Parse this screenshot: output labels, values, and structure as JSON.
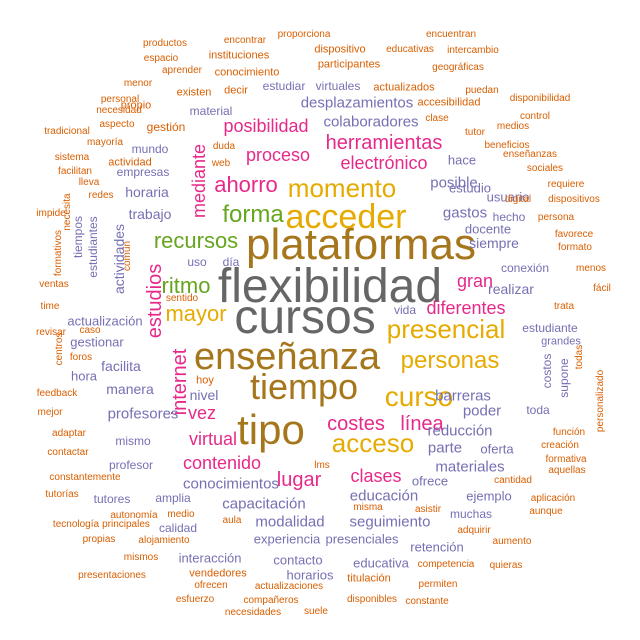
{
  "palette": {
    "orange": "#D95F02",
    "purple": "#7570B3",
    "magenta": "#E7298A",
    "green": "#66A61E",
    "gold": "#E6AB02",
    "brown": "#A6761D",
    "gray": "#666666"
  },
  "words": [
    {
      "text": "flexibilidad",
      "freq": 100,
      "color": "gray"
    },
    {
      "text": "cursos",
      "freq": 100,
      "color": "gray"
    },
    {
      "text": "plataformas",
      "freq": 92,
      "color": "brown"
    },
    {
      "text": "enseñanza",
      "freq": 90,
      "color": "brown"
    },
    {
      "text": "tiempo",
      "freq": 86,
      "color": "brown"
    },
    {
      "text": "tipo",
      "freq": 84,
      "color": "brown"
    },
    {
      "text": "acceder",
      "freq": 80,
      "color": "gold"
    },
    {
      "text": "momento",
      "freq": 66,
      "color": "gold"
    },
    {
      "text": "presencial",
      "freq": 64,
      "color": "gold"
    },
    {
      "text": "curso",
      "freq": 62,
      "color": "gold"
    },
    {
      "text": "acceso",
      "freq": 62,
      "color": "gold"
    },
    {
      "text": "personas",
      "freq": 60,
      "color": "gold"
    },
    {
      "text": "forma",
      "freq": 56,
      "color": "green"
    },
    {
      "text": "mayor",
      "freq": 52,
      "color": "gold"
    },
    {
      "text": "ritmo",
      "freq": 50,
      "color": "green"
    },
    {
      "text": "recursos",
      "freq": 50,
      "color": "green"
    },
    {
      "text": "ahorro",
      "freq": 48,
      "color": "magenta"
    },
    {
      "text": "herramientas",
      "freq": 46,
      "color": "magenta"
    },
    {
      "text": "estudios",
      "freq": 48,
      "color": "magenta"
    },
    {
      "text": "internet",
      "freq": 48,
      "color": "magenta"
    },
    {
      "text": "mediante",
      "freq": 46,
      "color": "magenta"
    },
    {
      "text": "costes",
      "freq": 46,
      "color": "magenta"
    },
    {
      "text": "línea",
      "freq": 46,
      "color": "magenta"
    },
    {
      "text": "lugar",
      "freq": 44,
      "color": "magenta"
    },
    {
      "text": "contenido",
      "freq": 44,
      "color": "magenta"
    },
    {
      "text": "electrónico",
      "freq": 42,
      "color": "magenta"
    },
    {
      "text": "proceso",
      "freq": 42,
      "color": "magenta"
    },
    {
      "text": "posibilidad",
      "freq": 42,
      "color": "magenta"
    },
    {
      "text": "vez",
      "freq": 42,
      "color": "magenta"
    },
    {
      "text": "virtual",
      "freq": 40,
      "color": "magenta"
    },
    {
      "text": "diferentes",
      "freq": 40,
      "color": "magenta"
    },
    {
      "text": "clases",
      "freq": 40,
      "color": "magenta"
    },
    {
      "text": "gran",
      "freq": 40,
      "color": "magenta"
    },
    {
      "text": "colaboradores",
      "freq": 36,
      "color": "purple"
    },
    {
      "text": "desplazamientos",
      "freq": 36,
      "color": "purple"
    },
    {
      "text": "capacitación",
      "freq": 36,
      "color": "purple"
    },
    {
      "text": "conocimientos",
      "freq": 36,
      "color": "purple"
    },
    {
      "text": "modalidad",
      "freq": 36,
      "color": "purple"
    },
    {
      "text": "seguimiento",
      "freq": 36,
      "color": "purple"
    },
    {
      "text": "educación",
      "freq": 36,
      "color": "purple"
    },
    {
      "text": "posible",
      "freq": 34,
      "color": "purple"
    },
    {
      "text": "gastos",
      "freq": 34,
      "color": "purple"
    },
    {
      "text": "barreras",
      "freq": 34,
      "color": "purple"
    },
    {
      "text": "poder",
      "freq": 34,
      "color": "purple"
    },
    {
      "text": "parte",
      "freq": 34,
      "color": "purple"
    },
    {
      "text": "reducción",
      "freq": 34,
      "color": "purple"
    },
    {
      "text": "materiales",
      "freq": 34,
      "color": "purple"
    },
    {
      "text": "profesores",
      "freq": 34,
      "color": "purple"
    },
    {
      "text": "realizar",
      "freq": 32,
      "color": "purple"
    },
    {
      "text": "trabajo",
      "freq": 32,
      "color": "purple"
    },
    {
      "text": "manera",
      "freq": 32,
      "color": "purple"
    },
    {
      "text": "facilita",
      "freq": 30,
      "color": "purple"
    },
    {
      "text": "horaria",
      "freq": 30,
      "color": "purple"
    },
    {
      "text": "actividades",
      "freq": 30,
      "color": "purple"
    },
    {
      "text": "siempre",
      "freq": 32,
      "color": "purple"
    },
    {
      "text": "nivel",
      "freq": 30,
      "color": "purple"
    },
    {
      "text": "hace",
      "freq": 28,
      "color": "purple"
    },
    {
      "text": "estudio",
      "freq": 28,
      "color": "purple"
    },
    {
      "text": "docente",
      "freq": 28,
      "color": "purple"
    },
    {
      "text": "hecho",
      "freq": 26,
      "color": "purple"
    },
    {
      "text": "usuario",
      "freq": 28,
      "color": "purple"
    },
    {
      "text": "conexión",
      "freq": 26,
      "color": "purple"
    },
    {
      "text": "vida",
      "freq": 26,
      "color": "purple"
    },
    {
      "text": "toda",
      "freq": 26,
      "color": "purple"
    },
    {
      "text": "costos",
      "freq": 26,
      "color": "purple"
    },
    {
      "text": "estudiante",
      "freq": 24,
      "color": "purple"
    },
    {
      "text": "grandes",
      "freq": 22,
      "color": "purple"
    },
    {
      "text": "ofrece",
      "freq": 26,
      "color": "purple"
    },
    {
      "text": "ejemplo",
      "freq": 26,
      "color": "purple"
    },
    {
      "text": "oferta",
      "freq": 24,
      "color": "purple"
    },
    {
      "text": "supone",
      "freq": 22,
      "color": "purple"
    },
    {
      "text": "muchas",
      "freq": 24,
      "color": "purple"
    },
    {
      "text": "experiencia",
      "freq": 26,
      "color": "purple"
    },
    {
      "text": "presenciales",
      "freq": 24,
      "color": "purple"
    },
    {
      "text": "interacción",
      "freq": 24,
      "color": "purple"
    },
    {
      "text": "contacto",
      "freq": 24,
      "color": "purple"
    },
    {
      "text": "horarios",
      "freq": 24,
      "color": "purple"
    },
    {
      "text": "retención",
      "freq": 24,
      "color": "purple"
    },
    {
      "text": "educativa",
      "freq": 24,
      "color": "purple"
    },
    {
      "text": "actualización",
      "freq": 26,
      "color": "purple"
    },
    {
      "text": "gestionar",
      "freq": 26,
      "color": "purple"
    },
    {
      "text": "hora",
      "freq": 24,
      "color": "purple"
    },
    {
      "text": "tutores",
      "freq": 24,
      "color": "purple"
    },
    {
      "text": "profesor",
      "freq": 22,
      "color": "purple"
    },
    {
      "text": "mismo",
      "freq": 22,
      "color": "purple"
    },
    {
      "text": "amplia",
      "freq": 24,
      "color": "purple"
    },
    {
      "text": "calidad",
      "freq": 24,
      "color": "purple"
    },
    {
      "text": "mundo",
      "freq": 22,
      "color": "purple"
    },
    {
      "text": "empresas",
      "freq": 22,
      "color": "purple"
    },
    {
      "text": "estudiantes",
      "freq": 22,
      "color": "purple"
    },
    {
      "text": "tiempos",
      "freq": 22,
      "color": "purple"
    },
    {
      "text": "uso",
      "freq": 24,
      "color": "purple"
    },
    {
      "text": "día",
      "freq": 24,
      "color": "purple"
    },
    {
      "text": "estudiar",
      "freq": 24,
      "color": "purple"
    },
    {
      "text": "virtuales",
      "freq": 22,
      "color": "purple"
    },
    {
      "text": "material",
      "freq": 22,
      "color": "purple"
    },
    {
      "text": "actualizados",
      "freq": 20,
      "color": "orange"
    },
    {
      "text": "accesibilidad",
      "freq": 20,
      "color": "orange"
    },
    {
      "text": "dispositivo",
      "freq": 20,
      "color": "orange"
    },
    {
      "text": "participantes",
      "freq": 20,
      "color": "orange"
    },
    {
      "text": "instituciones",
      "freq": 20,
      "color": "orange"
    },
    {
      "text": "conocimiento",
      "freq": 20,
      "color": "orange"
    },
    {
      "text": "gestión",
      "freq": 22,
      "color": "orange"
    },
    {
      "text": "existen",
      "freq": 18,
      "color": "orange"
    },
    {
      "text": "decir",
      "freq": 18,
      "color": "orange"
    },
    {
      "text": "propio",
      "freq": 18,
      "color": "orange"
    },
    {
      "text": "actividad",
      "freq": 18,
      "color": "orange"
    },
    {
      "text": "hoy",
      "freq": 18,
      "color": "orange"
    },
    {
      "text": "tutor",
      "freq": 16,
      "color": "orange"
    },
    {
      "text": "clase",
      "freq": 16,
      "color": "orange"
    },
    {
      "text": "medios",
      "freq": 16,
      "color": "orange"
    },
    {
      "text": "beneficios",
      "freq": 16,
      "color": "orange"
    },
    {
      "text": "enseñanzas",
      "freq": 16,
      "color": "orange"
    },
    {
      "text": "sociales",
      "freq": 16,
      "color": "orange"
    },
    {
      "text": "digital",
      "freq": 16,
      "color": "orange"
    },
    {
      "text": "dispositivos",
      "freq": 16,
      "color": "orange"
    },
    {
      "text": "favorece",
      "freq": 16,
      "color": "orange"
    },
    {
      "text": "formato",
      "freq": 16,
      "color": "orange"
    },
    {
      "text": "persona",
      "freq": 16,
      "color": "orange"
    },
    {
      "text": "requiere",
      "freq": 16,
      "color": "orange"
    },
    {
      "text": "control",
      "freq": 16,
      "color": "orange"
    },
    {
      "text": "disponibilidad",
      "freq": 16,
      "color": "orange"
    },
    {
      "text": "puedan",
      "freq": 16,
      "color": "orange"
    },
    {
      "text": "geográficas",
      "freq": 16,
      "color": "orange"
    },
    {
      "text": "intercambio",
      "freq": 16,
      "color": "orange"
    },
    {
      "text": "educativas",
      "freq": 16,
      "color": "orange"
    },
    {
      "text": "encuentran",
      "freq": 16,
      "color": "orange"
    },
    {
      "text": "proporciona",
      "freq": 16,
      "color": "orange"
    },
    {
      "text": "encontrar",
      "freq": 16,
      "color": "orange"
    },
    {
      "text": "productos",
      "freq": 16,
      "color": "orange"
    },
    {
      "text": "espacio",
      "freq": 16,
      "color": "orange"
    },
    {
      "text": "aprender",
      "freq": 16,
      "color": "orange"
    },
    {
      "text": "menor",
      "freq": 16,
      "color": "orange"
    },
    {
      "text": "personal",
      "freq": 16,
      "color": "orange"
    },
    {
      "text": "necesidad",
      "freq": 16,
      "color": "orange"
    },
    {
      "text": "aspecto",
      "freq": 16,
      "color": "orange"
    },
    {
      "text": "tradicional",
      "freq": 16,
      "color": "orange"
    },
    {
      "text": "mayoría",
      "freq": 16,
      "color": "orange"
    },
    {
      "text": "sistema",
      "freq": 16,
      "color": "orange"
    },
    {
      "text": "facilitan",
      "freq": 16,
      "color": "orange"
    },
    {
      "text": "lleva",
      "freq": 16,
      "color": "orange"
    },
    {
      "text": "redes",
      "freq": 16,
      "color": "orange"
    },
    {
      "text": "impide",
      "freq": 16,
      "color": "orange"
    },
    {
      "text": "necesita",
      "freq": 16,
      "color": "orange"
    },
    {
      "text": "formativos",
      "freq": 16,
      "color": "orange"
    },
    {
      "text": "común",
      "freq": 16,
      "color": "orange"
    },
    {
      "text": "ventas",
      "freq": 16,
      "color": "orange"
    },
    {
      "text": "time",
      "freq": 16,
      "color": "orange"
    },
    {
      "text": "revisar",
      "freq": 16,
      "color": "orange"
    },
    {
      "text": "caso",
      "freq": 16,
      "color": "orange"
    },
    {
      "text": "centros",
      "freq": 16,
      "color": "orange"
    },
    {
      "text": "foros",
      "freq": 16,
      "color": "orange"
    },
    {
      "text": "feedback",
      "freq": 16,
      "color": "orange"
    },
    {
      "text": "mejor",
      "freq": 16,
      "color": "orange"
    },
    {
      "text": "adaptar",
      "freq": 16,
      "color": "orange"
    },
    {
      "text": "contactar",
      "freq": 16,
      "color": "orange"
    },
    {
      "text": "constantemente",
      "freq": 16,
      "color": "orange"
    },
    {
      "text": "tutorías",
      "freq": 16,
      "color": "orange"
    },
    {
      "text": "autonomía",
      "freq": 16,
      "color": "orange"
    },
    {
      "text": "medio",
      "freq": 16,
      "color": "orange"
    },
    {
      "text": "tecnología",
      "freq": 16,
      "color": "orange"
    },
    {
      "text": "principales",
      "freq": 16,
      "color": "orange"
    },
    {
      "text": "propias",
      "freq": 16,
      "color": "orange"
    },
    {
      "text": "alojamiento",
      "freq": 16,
      "color": "orange"
    },
    {
      "text": "mismos",
      "freq": 16,
      "color": "orange"
    },
    {
      "text": "presentaciones",
      "freq": 16,
      "color": "orange"
    },
    {
      "text": "vendedores",
      "freq": 18,
      "color": "orange"
    },
    {
      "text": "ofrecen",
      "freq": 16,
      "color": "orange"
    },
    {
      "text": "actualizaciones",
      "freq": 16,
      "color": "orange"
    },
    {
      "text": "esfuerzo",
      "freq": 16,
      "color": "orange"
    },
    {
      "text": "compañeros",
      "freq": 16,
      "color": "orange"
    },
    {
      "text": "necesidades",
      "freq": 16,
      "color": "orange"
    },
    {
      "text": "suele",
      "freq": 16,
      "color": "orange"
    },
    {
      "text": "titulación",
      "freq": 18,
      "color": "orange"
    },
    {
      "text": "disponibles",
      "freq": 16,
      "color": "orange"
    },
    {
      "text": "competencia",
      "freq": 16,
      "color": "orange"
    },
    {
      "text": "quieras",
      "freq": 16,
      "color": "orange"
    },
    {
      "text": "permiten",
      "freq": 16,
      "color": "orange"
    },
    {
      "text": "constante",
      "freq": 16,
      "color": "orange"
    },
    {
      "text": "aula",
      "freq": 16,
      "color": "orange"
    },
    {
      "text": "misma",
      "freq": 16,
      "color": "orange"
    },
    {
      "text": "asistir",
      "freq": 16,
      "color": "orange"
    },
    {
      "text": "adquirir",
      "freq": 16,
      "color": "orange"
    },
    {
      "text": "aumento",
      "freq": 16,
      "color": "orange"
    },
    {
      "text": "aplicación",
      "freq": 16,
      "color": "orange"
    },
    {
      "text": "aunque",
      "freq": 16,
      "color": "orange"
    },
    {
      "text": "cantidad",
      "freq": 16,
      "color": "orange"
    },
    {
      "text": "lms",
      "freq": 16,
      "color": "orange"
    },
    {
      "text": "formativa",
      "freq": 16,
      "color": "orange"
    },
    {
      "text": "aquellas",
      "freq": 16,
      "color": "orange"
    },
    {
      "text": "función",
      "freq": 16,
      "color": "orange"
    },
    {
      "text": "creación",
      "freq": 16,
      "color": "orange"
    },
    {
      "text": "personalizado",
      "freq": 16,
      "color": "orange"
    },
    {
      "text": "todas",
      "freq": 16,
      "color": "orange"
    },
    {
      "text": "fácil",
      "freq": 16,
      "color": "orange"
    },
    {
      "text": "menos",
      "freq": 16,
      "color": "orange"
    },
    {
      "text": "trata",
      "freq": 16,
      "color": "orange"
    },
    {
      "text": "sentido",
      "freq": 16,
      "color": "orange"
    },
    {
      "text": "duda",
      "freq": 16,
      "color": "orange"
    },
    {
      "text": "web",
      "freq": 16,
      "color": "orange"
    }
  ]
}
